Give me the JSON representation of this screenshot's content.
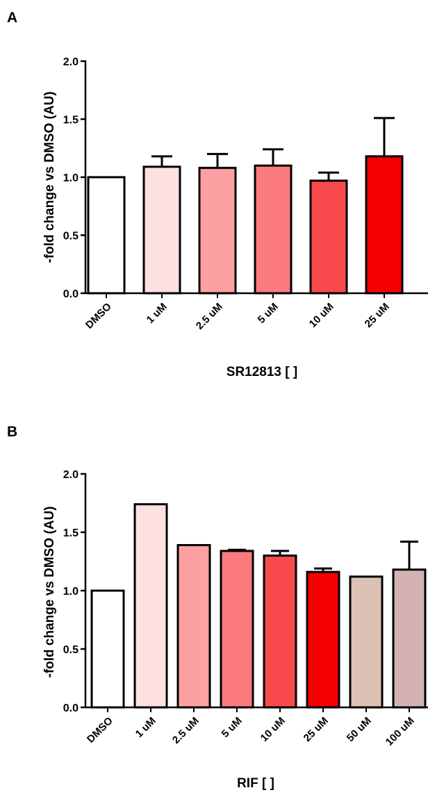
{
  "chart_data": [
    {
      "panel": "A",
      "type": "bar",
      "title": "",
      "xlabel": "SR12813 [ ]",
      "ylabel": "-fold change vs DMSO (AU)",
      "ylim": [
        0,
        2.0
      ],
      "yticks": [
        "0.0",
        "0.5",
        "1.0",
        "1.5",
        "2.0"
      ],
      "categories": [
        "DMSO",
        "1 uM",
        "2.5 uM",
        "5 uM",
        "10 uM",
        "25 uM"
      ],
      "values": [
        1.0,
        1.09,
        1.08,
        1.1,
        0.97,
        1.18
      ],
      "errors": [
        0,
        0.09,
        0.12,
        0.14,
        0.07,
        0.33
      ],
      "colors": [
        "#ffffff",
        "#fde0e2",
        "#fca0a4",
        "#fb7b7f",
        "#f84a4d",
        "#f50000"
      ],
      "grid": false,
      "legend": "none"
    },
    {
      "panel": "B",
      "type": "bar",
      "title": "",
      "xlabel": "RIF [ ]",
      "ylabel": "-fold change vs DMSO (AU)",
      "ylim": [
        0,
        2.0
      ],
      "yticks": [
        "0.0",
        "0.5",
        "1.0",
        "1.5",
        "2.0"
      ],
      "categories": [
        "DMSO",
        "1 uM",
        "2.5 uM",
        "5 uM",
        "10 uM",
        "25 uM",
        "50 uM",
        "100 uM"
      ],
      "values": [
        1.0,
        1.74,
        1.39,
        1.34,
        1.3,
        1.16,
        1.12,
        1.18
      ],
      "errors": [
        0,
        0,
        0,
        0.01,
        0.04,
        0.03,
        0,
        0.24
      ],
      "colors": [
        "#ffffff",
        "#fde0e2",
        "#fca0a4",
        "#fb7b7f",
        "#f84a4d",
        "#f50000",
        "#dbc2b4",
        "#d4b2b2"
      ],
      "grid": false,
      "legend": "none"
    }
  ]
}
